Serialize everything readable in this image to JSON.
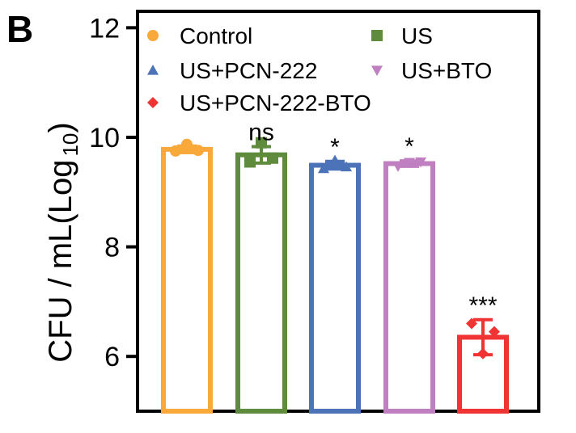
{
  "panel_label": "B",
  "chart_data": {
    "type": "bar",
    "categories": [
      "Control",
      "US",
      "US+PCN-222",
      "US+BTO",
      "US+PCN-222-BTO"
    ],
    "series": [
      {
        "values": [
          9.78,
          9.68,
          9.49,
          9.52,
          6.35
        ],
        "errors": [
          0.06,
          0.15,
          0.07,
          0.05,
          0.32
        ],
        "points": [
          [
            9.75,
            9.87,
            9.76
          ],
          [
            9.55,
            9.9,
            9.62
          ],
          [
            9.43,
            9.58,
            9.46
          ],
          [
            9.47,
            9.54,
            9.55
          ],
          [
            6.6,
            6.05,
            6.45
          ]
        ]
      }
    ],
    "annotations": [
      "",
      "ns",
      "*",
      "*",
      "***"
    ],
    "colors": [
      "#f9a83a",
      "#5f8b3c",
      "#4c72b8",
      "#c07fc0",
      "#f03434"
    ],
    "markers": [
      "circle",
      "square",
      "triangle-up",
      "triangle-down",
      "diamond"
    ],
    "ylabel": "CFU / mL(Log",
    "ylabel_sub": "10",
    "ylabel_close": ")",
    "ylim": [
      5,
      12.3
    ],
    "yticks": [
      "6",
      "8",
      "10",
      "12"
    ],
    "legend": {
      "placement": "top",
      "entries": [
        "Control",
        "US",
        "US+PCN-222",
        "US+BTO",
        "US+PCN-222-BTO"
      ]
    },
    "grid": false
  }
}
